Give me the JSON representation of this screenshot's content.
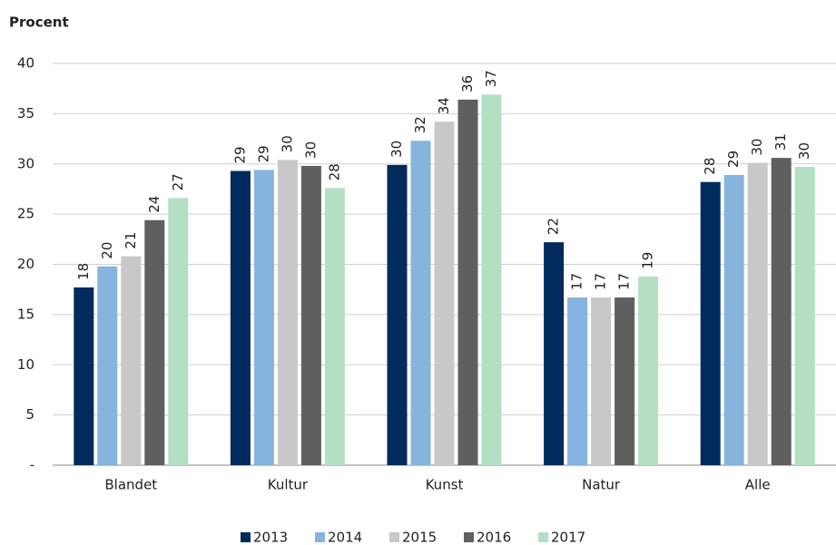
{
  "chart_data": {
    "type": "bar",
    "title": "Procent",
    "categories": [
      "Blandet",
      "Kultur",
      "Kunst",
      "Natur",
      "Alle"
    ],
    "series": [
      {
        "name": "2013",
        "color": "#002b5c",
        "values": [
          17.7,
          29.3,
          29.9,
          22.2,
          28.2
        ],
        "value_labels": [
          "18",
          "29",
          "30",
          "22",
          "28"
        ]
      },
      {
        "name": "2014",
        "color": "#85b4de",
        "values": [
          19.8,
          29.4,
          32.3,
          16.7,
          28.9
        ],
        "value_labels": [
          "20",
          "29",
          "32",
          "17",
          "29"
        ]
      },
      {
        "name": "2015",
        "color": "#c8c8c8",
        "values": [
          20.8,
          30.4,
          34.2,
          16.7,
          30.1
        ],
        "value_labels": [
          "21",
          "30",
          "34",
          "17",
          "30"
        ]
      },
      {
        "name": "2016",
        "color": "#5f5f5f",
        "values": [
          24.4,
          29.8,
          36.4,
          16.7,
          30.6
        ],
        "value_labels": [
          "24",
          "30",
          "36",
          "17",
          "31"
        ]
      },
      {
        "name": "2017",
        "color": "#b3e0c3",
        "values": [
          26.6,
          27.6,
          36.9,
          18.8,
          29.7
        ],
        "value_labels": [
          "27",
          "28",
          "37",
          "19",
          "30"
        ]
      }
    ],
    "ylim": [
      0,
      40
    ],
    "yticks": [
      {
        "value": 0,
        "label": "-"
      },
      5,
      10,
      15,
      20,
      25,
      30,
      35,
      40
    ],
    "grid": true,
    "legend": "bottom"
  }
}
